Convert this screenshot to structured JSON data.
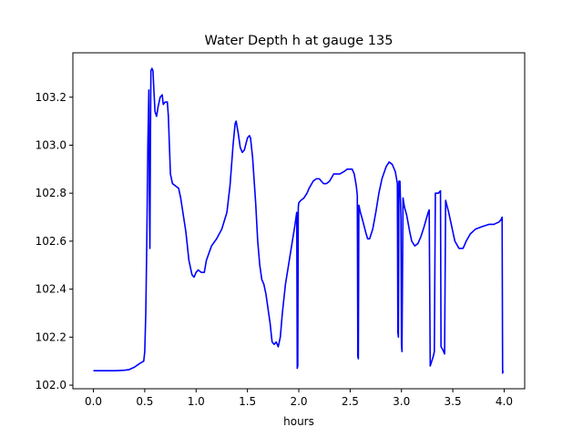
{
  "chart_data": {
    "type": "line",
    "title": "Water Depth h at gauge 135",
    "xlabel": "hours",
    "ylabel": "",
    "xlim": [
      -0.2,
      4.2
    ],
    "ylim": [
      101.985,
      103.385
    ],
    "xticks": [
      0.0,
      0.5,
      1.0,
      1.5,
      2.0,
      2.5,
      3.0,
      3.5,
      4.0
    ],
    "xtick_labels": [
      "0.0",
      "0.5",
      "1.0",
      "1.5",
      "2.0",
      "2.5",
      "3.0",
      "3.5",
      "4.0"
    ],
    "yticks": [
      102.0,
      102.2,
      102.4,
      102.6,
      102.8,
      103.0,
      103.2
    ],
    "ytick_labels": [
      "102.0",
      "102.2",
      "102.4",
      "102.6",
      "102.8",
      "103.0",
      "103.2"
    ],
    "grid": false,
    "series": [
      {
        "color": "#0000ff",
        "points": [
          [
            0.0,
            102.06
          ],
          [
            0.2,
            102.06
          ],
          [
            0.3,
            102.062
          ],
          [
            0.35,
            102.065
          ],
          [
            0.4,
            102.075
          ],
          [
            0.45,
            102.09
          ],
          [
            0.49,
            102.1
          ],
          [
            0.5,
            102.14
          ],
          [
            0.51,
            102.3
          ],
          [
            0.52,
            102.6
          ],
          [
            0.53,
            103.0
          ],
          [
            0.54,
            103.23
          ],
          [
            0.545,
            102.8
          ],
          [
            0.55,
            102.57
          ],
          [
            0.555,
            103.0
          ],
          [
            0.56,
            103.31
          ],
          [
            0.57,
            103.32
          ],
          [
            0.58,
            103.31
          ],
          [
            0.59,
            103.22
          ],
          [
            0.6,
            103.14
          ],
          [
            0.615,
            103.12
          ],
          [
            0.63,
            103.16
          ],
          [
            0.65,
            103.2
          ],
          [
            0.67,
            103.21
          ],
          [
            0.68,
            103.17
          ],
          [
            0.7,
            103.18
          ],
          [
            0.72,
            103.18
          ],
          [
            0.73,
            103.12
          ],
          [
            0.74,
            103.0
          ],
          [
            0.75,
            102.88
          ],
          [
            0.77,
            102.84
          ],
          [
            0.8,
            102.83
          ],
          [
            0.83,
            102.82
          ],
          [
            0.85,
            102.78
          ],
          [
            0.9,
            102.64
          ],
          [
            0.93,
            102.52
          ],
          [
            0.96,
            102.46
          ],
          [
            0.98,
            102.45
          ],
          [
            1.0,
            102.47
          ],
          [
            1.02,
            102.48
          ],
          [
            1.05,
            102.47
          ],
          [
            1.08,
            102.47
          ],
          [
            1.1,
            102.52
          ],
          [
            1.15,
            102.58
          ],
          [
            1.2,
            102.61
          ],
          [
            1.25,
            102.65
          ],
          [
            1.3,
            102.72
          ],
          [
            1.33,
            102.83
          ],
          [
            1.36,
            103.0
          ],
          [
            1.38,
            103.09
          ],
          [
            1.39,
            103.1
          ],
          [
            1.41,
            103.05
          ],
          [
            1.43,
            102.99
          ],
          [
            1.45,
            102.97
          ],
          [
            1.47,
            102.98
          ],
          [
            1.5,
            103.03
          ],
          [
            1.52,
            103.04
          ],
          [
            1.53,
            103.03
          ],
          [
            1.55,
            102.95
          ],
          [
            1.58,
            102.76
          ],
          [
            1.6,
            102.6
          ],
          [
            1.62,
            102.5
          ],
          [
            1.64,
            102.44
          ],
          [
            1.66,
            102.42
          ],
          [
            1.68,
            102.38
          ],
          [
            1.7,
            102.32
          ],
          [
            1.72,
            102.26
          ],
          [
            1.74,
            102.18
          ],
          [
            1.76,
            102.17
          ],
          [
            1.78,
            102.18
          ],
          [
            1.8,
            102.16
          ],
          [
            1.82,
            102.2
          ],
          [
            1.84,
            102.3
          ],
          [
            1.87,
            102.42
          ],
          [
            1.9,
            102.5
          ],
          [
            1.93,
            102.58
          ],
          [
            1.96,
            102.66
          ],
          [
            1.98,
            102.72
          ],
          [
            1.985,
            102.07
          ],
          [
            1.99,
            102.08
          ],
          [
            1.995,
            102.74
          ],
          [
            2.0,
            102.76
          ],
          [
            2.02,
            102.77
          ],
          [
            2.05,
            102.78
          ],
          [
            2.08,
            102.8
          ],
          [
            2.1,
            102.82
          ],
          [
            2.14,
            102.85
          ],
          [
            2.17,
            102.86
          ],
          [
            2.2,
            102.86
          ],
          [
            2.24,
            102.84
          ],
          [
            2.27,
            102.84
          ],
          [
            2.3,
            102.85
          ],
          [
            2.34,
            102.88
          ],
          [
            2.38,
            102.88
          ],
          [
            2.4,
            102.88
          ],
          [
            2.44,
            102.89
          ],
          [
            2.47,
            102.9
          ],
          [
            2.52,
            102.9
          ],
          [
            2.54,
            102.88
          ],
          [
            2.56,
            102.83
          ],
          [
            2.57,
            102.79
          ],
          [
            2.575,
            102.12
          ],
          [
            2.58,
            102.11
          ],
          [
            2.585,
            102.75
          ],
          [
            2.6,
            102.72
          ],
          [
            2.62,
            102.69
          ],
          [
            2.65,
            102.64
          ],
          [
            2.67,
            102.61
          ],
          [
            2.69,
            102.61
          ],
          [
            2.72,
            102.65
          ],
          [
            2.75,
            102.72
          ],
          [
            2.78,
            102.8
          ],
          [
            2.81,
            102.86
          ],
          [
            2.85,
            102.91
          ],
          [
            2.88,
            102.93
          ],
          [
            2.91,
            102.92
          ],
          [
            2.94,
            102.89
          ],
          [
            2.96,
            102.84
          ],
          [
            2.965,
            102.22
          ],
          [
            2.97,
            102.2
          ],
          [
            2.975,
            102.85
          ],
          [
            2.985,
            102.85
          ],
          [
            2.995,
            102.7
          ],
          [
            3.0,
            102.17
          ],
          [
            3.005,
            102.14
          ],
          [
            3.015,
            102.78
          ],
          [
            3.03,
            102.74
          ],
          [
            3.05,
            102.71
          ],
          [
            3.08,
            102.64
          ],
          [
            3.1,
            102.6
          ],
          [
            3.13,
            102.58
          ],
          [
            3.16,
            102.59
          ],
          [
            3.19,
            102.62
          ],
          [
            3.22,
            102.66
          ],
          [
            3.26,
            102.72
          ],
          [
            3.27,
            102.73
          ],
          [
            3.28,
            102.08
          ],
          [
            3.295,
            102.1
          ],
          [
            3.31,
            102.12
          ],
          [
            3.32,
            102.14
          ],
          [
            3.33,
            102.8
          ],
          [
            3.36,
            102.8
          ],
          [
            3.38,
            102.81
          ],
          [
            3.385,
            102.16
          ],
          [
            3.4,
            102.15
          ],
          [
            3.42,
            102.13
          ],
          [
            3.43,
            102.77
          ],
          [
            3.46,
            102.72
          ],
          [
            3.49,
            102.66
          ],
          [
            3.52,
            102.6
          ],
          [
            3.56,
            102.57
          ],
          [
            3.6,
            102.57
          ],
          [
            3.63,
            102.6
          ],
          [
            3.67,
            102.63
          ],
          [
            3.72,
            102.65
          ],
          [
            3.78,
            102.66
          ],
          [
            3.85,
            102.67
          ],
          [
            3.9,
            102.67
          ],
          [
            3.95,
            102.68
          ],
          [
            3.97,
            102.69
          ],
          [
            3.98,
            102.7
          ],
          [
            3.985,
            102.05
          ],
          [
            3.99,
            102.06
          ]
        ]
      }
    ]
  }
}
